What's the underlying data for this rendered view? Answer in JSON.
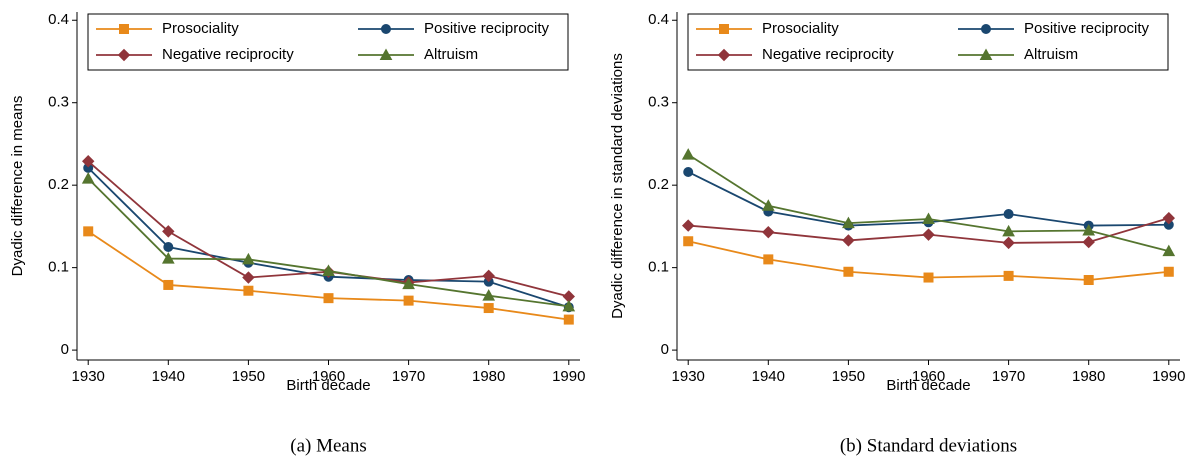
{
  "chart_data": [
    {
      "type": "line",
      "caption": "(a) Means",
      "ylabel": "Dyadic difference in means",
      "xlabel": "Birth decade",
      "x": [
        1930,
        1940,
        1950,
        1960,
        1970,
        1980,
        1990
      ],
      "xlim": [
        1928.6,
        1991.4
      ],
      "xticks": [
        1930,
        1940,
        1950,
        1960,
        1970,
        1980,
        1990
      ],
      "ylim": [
        -0.012,
        0.41
      ],
      "yticks": [
        0,
        0.1,
        0.2,
        0.3,
        0.4
      ],
      "legend": "top",
      "series": [
        {
          "name": "Prosociality",
          "color": "#e8891a",
          "marker": "square",
          "values": [
            0.144,
            0.079,
            0.072,
            0.063,
            0.06,
            0.051,
            0.037
          ]
        },
        {
          "name": "Positive reciprocity",
          "color": "#1a476f",
          "marker": "circle",
          "values": [
            0.221,
            0.125,
            0.106,
            0.089,
            0.085,
            0.083,
            0.052
          ]
        },
        {
          "name": "Negative reciprocity",
          "color": "#90353b",
          "marker": "diamond",
          "values": [
            0.229,
            0.144,
            0.088,
            0.095,
            0.082,
            0.09,
            0.065
          ]
        },
        {
          "name": "Altruism",
          "color": "#55752f",
          "marker": "triangle",
          "values": [
            0.208,
            0.111,
            0.11,
            0.096,
            0.08,
            0.066,
            0.053
          ]
        }
      ]
    },
    {
      "type": "line",
      "caption": "(b) Standard deviations",
      "ylabel": "Dyadic difference in standard deviations",
      "xlabel": "Birth decade",
      "x": [
        1930,
        1940,
        1950,
        1960,
        1970,
        1980,
        1990
      ],
      "xlim": [
        1928.6,
        1991.4
      ],
      "xticks": [
        1930,
        1940,
        1950,
        1960,
        1970,
        1980,
        1990
      ],
      "ylim": [
        -0.012,
        0.41
      ],
      "yticks": [
        0,
        0.1,
        0.2,
        0.3,
        0.4
      ],
      "legend": "top",
      "series": [
        {
          "name": "Prosociality",
          "color": "#e8891a",
          "marker": "square",
          "values": [
            0.132,
            0.11,
            0.095,
            0.088,
            0.09,
            0.085,
            0.095
          ]
        },
        {
          "name": "Positive reciprocity",
          "color": "#1a476f",
          "marker": "circle",
          "values": [
            0.216,
            0.168,
            0.151,
            0.155,
            0.165,
            0.151,
            0.152
          ]
        },
        {
          "name": "Negative reciprocity",
          "color": "#90353b",
          "marker": "diamond",
          "values": [
            0.151,
            0.143,
            0.133,
            0.14,
            0.13,
            0.131,
            0.16
          ]
        },
        {
          "name": "Altruism",
          "color": "#55752f",
          "marker": "triangle",
          "values": [
            0.237,
            0.175,
            0.154,
            0.159,
            0.144,
            0.145,
            0.12
          ]
        }
      ]
    }
  ]
}
